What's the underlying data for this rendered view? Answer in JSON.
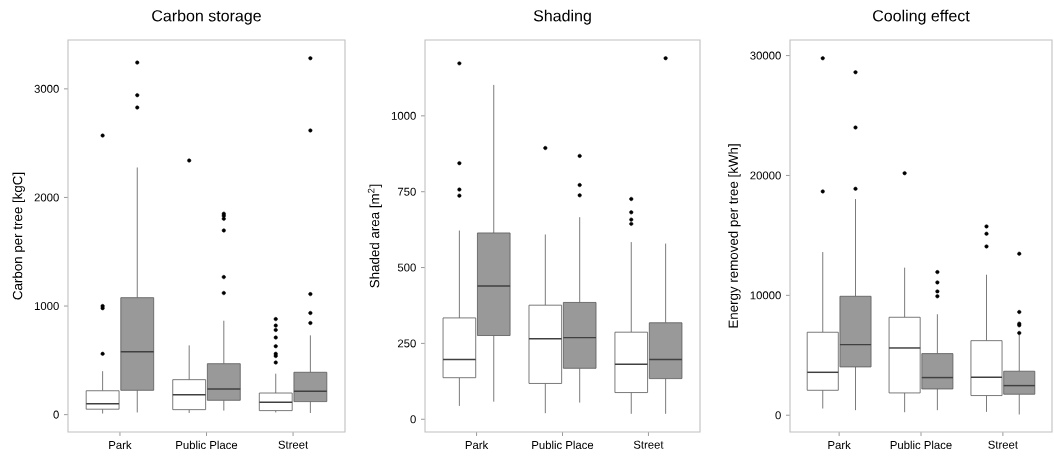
{
  "chart_data": [
    {
      "type": "box",
      "title": "Carbon storage",
      "ylabel": "Carbon per tree [kgC]",
      "categories": [
        "Park",
        "Public Place",
        "Street"
      ],
      "ylim": [
        -160,
        3450
      ],
      "yticks": [
        0,
        1000,
        2000,
        3000
      ],
      "grid": false,
      "series": [
        {
          "color": "#ffffff",
          "boxes": [
            {
              "low": 10,
              "q1": 50,
              "median": 100,
              "q3": 220,
              "high": 400,
              "outliers": [
                560,
                980,
                1000,
                2570
              ]
            },
            {
              "low": 15,
              "q1": 46,
              "median": 184,
              "q3": 322,
              "high": 638,
              "outliers": [
                2340
              ]
            },
            {
              "low": 20,
              "q1": 37,
              "median": 113,
              "q3": 199,
              "high": 377,
              "outliers": [
                480,
                540,
                560,
                630,
                710,
                780,
                820,
                880
              ]
            }
          ]
        },
        {
          "color": "#999999",
          "boxes": [
            {
              "low": 20,
              "q1": 224,
              "median": 580,
              "q3": 1077,
              "high": 2276,
              "outliers": [
                2828,
                2942,
                3242
              ]
            },
            {
              "low": 37,
              "q1": 132,
              "median": 236,
              "q3": 469,
              "high": 865,
              "outliers": [
                1120,
                1267,
                1696,
                1804,
                1831,
                1850
              ]
            },
            {
              "low": 15,
              "q1": 120,
              "median": 215,
              "q3": 390,
              "high": 730,
              "outliers": [
                844,
                936,
                1110,
                2617,
                3282
              ]
            }
          ]
        }
      ]
    },
    {
      "type": "box",
      "title": "Shading",
      "ylabel": "Shaded area [m$^{2}$]",
      "categories": [
        "Park",
        "Public Place",
        "Street"
      ],
      "ylim": [
        -42,
        1250
      ],
      "yticks": [
        0,
        250,
        500,
        750,
        1000
      ],
      "grid": false,
      "series": [
        {
          "color": "#ffffff",
          "boxes": [
            {
              "low": 44,
              "q1": 137,
              "median": 197,
              "q3": 334,
              "high": 622,
              "outliers": [
                737,
                757,
                844,
                1173
              ]
            },
            {
              "low": 20,
              "q1": 118,
              "median": 265,
              "q3": 376,
              "high": 609,
              "outliers": [
                894
              ]
            },
            {
              "low": 18,
              "q1": 88,
              "median": 181,
              "q3": 287,
              "high": 584,
              "outliers": [
                644,
                658,
                682,
                726
              ]
            }
          ]
        },
        {
          "color": "#999999",
          "boxes": [
            {
              "low": 58,
              "q1": 276,
              "median": 439,
              "q3": 614,
              "high": 1102
            },
            {
              "low": 55,
              "q1": 168,
              "median": 269,
              "q3": 385,
              "high": 666,
              "outliers": [
                738,
                772,
                868
              ]
            },
            {
              "low": 18,
              "q1": 134,
              "median": 197,
              "q3": 318,
              "high": 579,
              "outliers": [
                1190
              ]
            }
          ]
        }
      ]
    },
    {
      "type": "box",
      "title": "Cooling effect",
      "ylabel": "Energy removed per tree [kWh]",
      "categories": [
        "Park",
        "Public Place",
        "Street"
      ],
      "ylim": [
        -1400,
        31300
      ],
      "yticks": [
        0,
        10000,
        20000,
        30000
      ],
      "grid": false,
      "series": [
        {
          "color": "#ffffff",
          "boxes": [
            {
              "low": 560,
              "q1": 2080,
              "median": 3580,
              "q3": 6920,
              "high": 13610,
              "outliers": [
                18670,
                29780
              ]
            },
            {
              "low": 250,
              "q1": 1860,
              "median": 5610,
              "q3": 8170,
              "high": 12310,
              "outliers": [
                20190
              ]
            },
            {
              "low": 280,
              "q1": 1640,
              "median": 3170,
              "q3": 6220,
              "high": 11720,
              "outliers": [
                14080,
                15140,
                15750
              ]
            }
          ]
        },
        {
          "color": "#999999",
          "boxes": [
            {
              "low": 420,
              "q1": 4030,
              "median": 5890,
              "q3": 9920,
              "high": 18030,
              "outliers": [
                18890,
                24000,
                28610
              ]
            },
            {
              "low": 420,
              "q1": 2190,
              "median": 3140,
              "q3": 5140,
              "high": 8420,
              "outliers": [
                9920,
                10330,
                11080,
                11940
              ]
            },
            {
              "low": 60,
              "q1": 1750,
              "median": 2470,
              "q3": 3670,
              "high": 6720,
              "outliers": [
                6860,
                7500,
                7640,
                8610,
                13470
              ]
            }
          ]
        }
      ]
    }
  ]
}
